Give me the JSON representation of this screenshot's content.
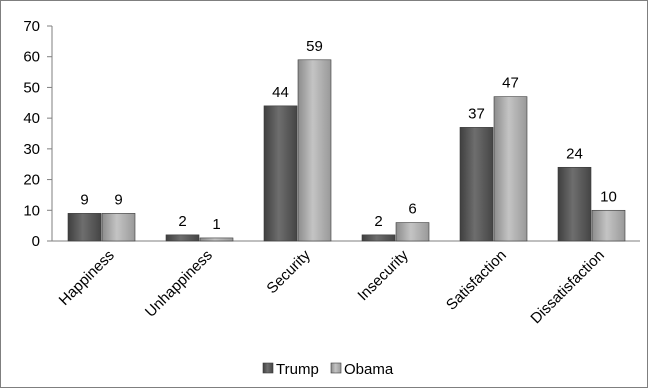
{
  "chart_data": {
    "type": "bar",
    "title": "",
    "xlabel": "",
    "ylabel": "",
    "ylim": [
      0,
      70
    ],
    "yticks": [
      0,
      10,
      20,
      30,
      40,
      50,
      60,
      70
    ],
    "categories": [
      "Happiness",
      "Unhappiness",
      "Security",
      "Insecurity",
      "Satisfaction",
      "Dissatisfaction"
    ],
    "series": [
      {
        "name": "Trump",
        "values": [
          9,
          2,
          44,
          2,
          37,
          24
        ],
        "color": "#5a5a5a"
      },
      {
        "name": "Obama",
        "values": [
          9,
          1,
          59,
          6,
          47,
          10
        ],
        "color": "#a6a6a6"
      }
    ],
    "grid": false,
    "legend_position": "bottom",
    "data_labels": true
  }
}
